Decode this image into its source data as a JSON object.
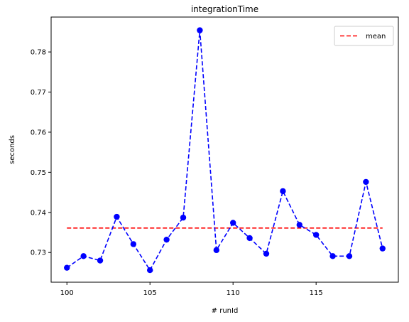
{
  "chart_data": {
    "type": "line",
    "title": "integrationTime",
    "xlabel": "# runId",
    "ylabel": "seconds",
    "xlim": [
      99.05,
      119.95
    ],
    "ylim": [
      0.7226,
      0.7887
    ],
    "xticks": [
      100,
      105,
      110,
      115
    ],
    "yticks": [
      0.73,
      0.74,
      0.75,
      0.76,
      0.77,
      0.78
    ],
    "ytick_labels": [
      "0.73",
      "0.74",
      "0.75",
      "0.76",
      "0.77",
      "0.78"
    ],
    "grid": false,
    "legend_position": "top-right",
    "series": [
      {
        "kind": "measurement",
        "color": "#0000ff",
        "line_style": "dashed",
        "marker": "circle",
        "x": [
          100,
          101,
          102,
          103,
          104,
          105,
          106,
          107,
          108,
          109,
          110,
          111,
          112,
          113,
          114,
          115,
          116,
          117,
          118,
          119
        ],
        "y": [
          0.7262,
          0.7291,
          0.728,
          0.7389,
          0.7321,
          0.7256,
          0.7332,
          0.7387,
          0.7854,
          0.7306,
          0.7374,
          0.7336,
          0.7297,
          0.7453,
          0.7369,
          0.7344,
          0.7291,
          0.7291,
          0.7476,
          0.731
        ]
      },
      {
        "kind": "mean",
        "name": "mean",
        "color": "#ff0000",
        "line_style": "dashed",
        "x": [
          100,
          119
        ],
        "y": [
          0.7361,
          0.7361
        ]
      }
    ]
  }
}
